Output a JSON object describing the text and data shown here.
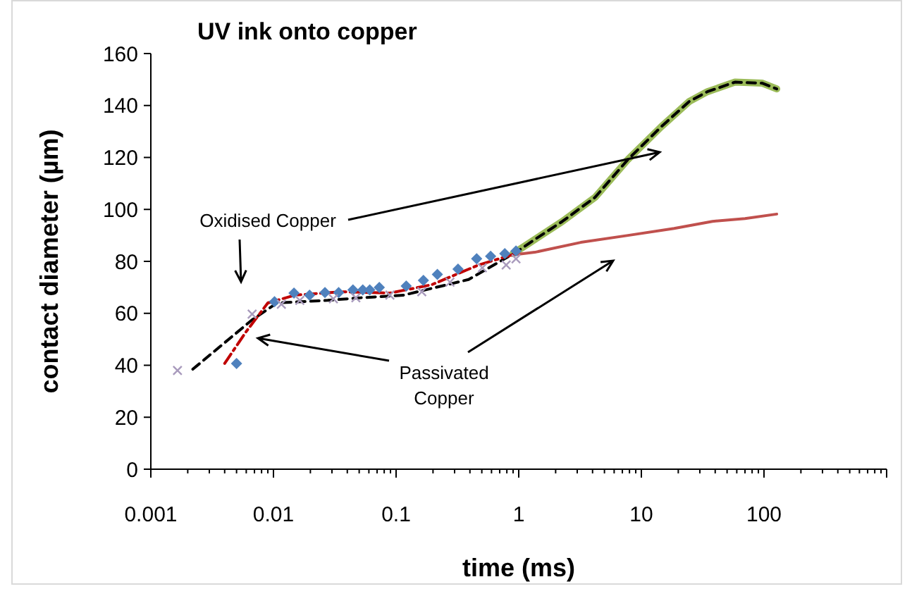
{
  "chart_data": {
    "type": "scatter",
    "title": "UV ink onto copper",
    "xlabel": "time (ms)",
    "ylabel": "contact diameter (µm)",
    "log": "x",
    "xlim": [
      0.001,
      1000
    ],
    "xticks": [
      0.001,
      0.01,
      0.1,
      1,
      10,
      100,
      {
        "value": 1000,
        "label": null
      }
    ],
    "ylim": [
      0,
      160
    ],
    "yticks": [
      0,
      20,
      40,
      60,
      80,
      100,
      120,
      140,
      160
    ],
    "grid": false,
    "annotations": [
      "Oxidised Copper",
      "Passivated Copper"
    ],
    "series": [
      {
        "marker": "diamond",
        "color": "#4f81bd",
        "x": [
          0.005,
          0.0102,
          0.0147,
          0.0197,
          0.0263,
          0.034,
          0.0445,
          0.0535,
          0.061,
          0.073,
          0.121,
          0.167,
          0.217,
          0.32,
          0.454,
          0.59,
          0.77,
          0.95
        ],
        "values": [
          40.7,
          64.5,
          67.8,
          67,
          68,
          68,
          69,
          69,
          69,
          70,
          70.5,
          72.7,
          75,
          77,
          81,
          82,
          83,
          84
        ]
      },
      {
        "marker": "cross",
        "color": "#a99bbd",
        "x": [
          0.00165,
          0.0067,
          0.0116,
          0.0164,
          0.0308,
          0.047,
          0.089,
          0.162,
          0.275,
          0.505,
          0.79,
          0.95
        ],
        "values": [
          38,
          59.7,
          63.5,
          65,
          65.6,
          66,
          67,
          68.3,
          72,
          77.5,
          78.6,
          81
        ]
      },
      {
        "type": "line",
        "line_style": "solid",
        "color": "#9bbb59",
        "x": [
          0.9,
          1.35,
          2.27,
          4.2,
          7.8,
          14.5,
          24.5,
          34.5,
          58,
          97,
          127
        ],
        "values": [
          83,
          88.4,
          95.4,
          104.7,
          119.3,
          131.8,
          141.5,
          145.3,
          149,
          148.6,
          146.4
        ]
      },
      {
        "type": "line",
        "line_style": "solid",
        "color": "#c0504d",
        "x": [
          0.9,
          1.35,
          3.2,
          7.8,
          18.5,
          38,
          70,
          127
        ],
        "values": [
          82.5,
          83.5,
          87.3,
          90,
          92.7,
          95.4,
          96.5,
          98.2
        ]
      },
      {
        "type": "line",
        "line_style": "dashed",
        "color": "#000000",
        "x": [
          0.0022,
          0.0067,
          0.0107,
          0.0277,
          0.052,
          0.115,
          0.39,
          0.95,
          1.35,
          2.27,
          4.2,
          7.8,
          14.5,
          24.5,
          34.5,
          58,
          97,
          127
        ],
        "values": [
          38.5,
          57.5,
          64,
          65,
          66,
          67,
          73,
          83.5,
          88.4,
          95.4,
          104.7,
          119.3,
          131.8,
          141.5,
          145.3,
          149,
          148.6,
          146.4
        ]
      },
      {
        "type": "line",
        "line_style": "dashdot",
        "color": "#c00000",
        "x": [
          0.004,
          0.006,
          0.009,
          0.015,
          0.036,
          0.089,
          0.195,
          0.47,
          0.95
        ],
        "values": [
          40.7,
          53,
          64,
          67,
          68.3,
          67.8,
          71,
          78.6,
          83
        ]
      }
    ]
  }
}
